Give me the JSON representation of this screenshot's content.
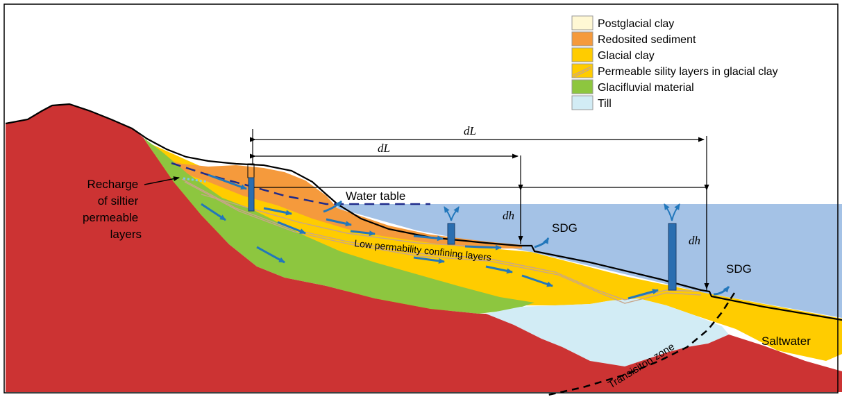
{
  "legend": {
    "items": [
      {
        "label": "Postglacial clay",
        "color": "#fff8d4"
      },
      {
        "label": "Redosited sediment",
        "color": "#f59a3c"
      },
      {
        "label": "Glacial clay",
        "color": "#ffcc00"
      },
      {
        "label": "Permeable sility layers in glacial clay",
        "color": "#ffcc00"
      },
      {
        "label": "Glacifluvial material",
        "color": "#8dc63f"
      },
      {
        "label": "Till",
        "color": "#d2ecf5"
      }
    ]
  },
  "labels": {
    "recharge_line1": "Recharge",
    "recharge_line2": "of siltier",
    "recharge_line3": "permeable",
    "recharge_line4": "layers",
    "water_table": "Water table",
    "confining": "Low permability confining layers",
    "sdg_1": "SDG",
    "sdg_2": "SDG",
    "saltwater": "Saltwater",
    "transition": "Transisiton zone",
    "dL_long": "dL",
    "dL_short": "dL",
    "dh_1": "dh",
    "dh_2": "dh"
  },
  "colors": {
    "bedrock": "#cc3333",
    "sea": "#a4c2e6",
    "arrow": "#2277bb",
    "well": "#2a6eb0"
  }
}
